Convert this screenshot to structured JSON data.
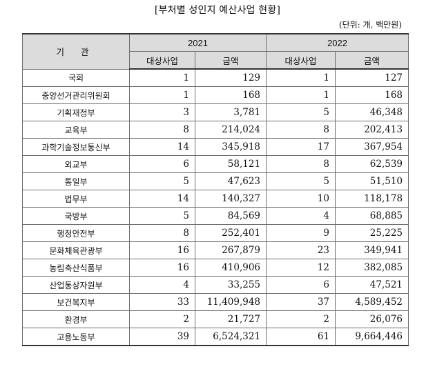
{
  "title": "[부처별 성인지 예산사업 현황]",
  "unit": "(단위: 개, 백만원)",
  "headers": {
    "org": "기 관",
    "year1": "2021",
    "year2": "2022",
    "count": "대상사업",
    "amount": "금액"
  },
  "rows": [
    {
      "org": "국회",
      "c21": "1",
      "a21": "129",
      "c22": "1",
      "a22": "127"
    },
    {
      "org": "중앙선거관리위원회",
      "c21": "1",
      "a21": "168",
      "c22": "1",
      "a22": "168"
    },
    {
      "org": "기획재정부",
      "c21": "3",
      "a21": "3,781",
      "c22": "5",
      "a22": "46,348"
    },
    {
      "org": "교육부",
      "c21": "8",
      "a21": "214,024",
      "c22": "8",
      "a22": "202,413"
    },
    {
      "org": "과학기술정보통신부",
      "c21": "14",
      "a21": "345,918",
      "c22": "17",
      "a22": "367,954"
    },
    {
      "org": "외교부",
      "c21": "6",
      "a21": "58,121",
      "c22": "8",
      "a22": "62,539"
    },
    {
      "org": "통일부",
      "c21": "5",
      "a21": "47,623",
      "c22": "5",
      "a22": "51,510"
    },
    {
      "org": "법무부",
      "c21": "14",
      "a21": "140,327",
      "c22": "10",
      "a22": "118,178"
    },
    {
      "org": "국방부",
      "c21": "5",
      "a21": "84,569",
      "c22": "4",
      "a22": "68,885"
    },
    {
      "org": "행정안전부",
      "c21": "8",
      "a21": "252,401",
      "c22": "9",
      "a22": "25,225"
    },
    {
      "org": "문화체육관광부",
      "c21": "16",
      "a21": "267,879",
      "c22": "23",
      "a22": "349,941"
    },
    {
      "org": "농림축산식품부",
      "c21": "16",
      "a21": "410,906",
      "c22": "12",
      "a22": "382,085"
    },
    {
      "org": "산업통상자원부",
      "c21": "4",
      "a21": "33,255",
      "c22": "6",
      "a22": "47,521"
    },
    {
      "org": "보건복지부",
      "c21": "33",
      "a21": "11,409,948",
      "c22": "37",
      "a22": "4,589,452"
    },
    {
      "org": "환경부",
      "c21": "2",
      "a21": "21,727",
      "c22": "2",
      "a22": "26,076"
    },
    {
      "org": "고용노동부",
      "c21": "39",
      "a21": "6,524,321",
      "c22": "61",
      "a22": "9,664,446"
    }
  ]
}
